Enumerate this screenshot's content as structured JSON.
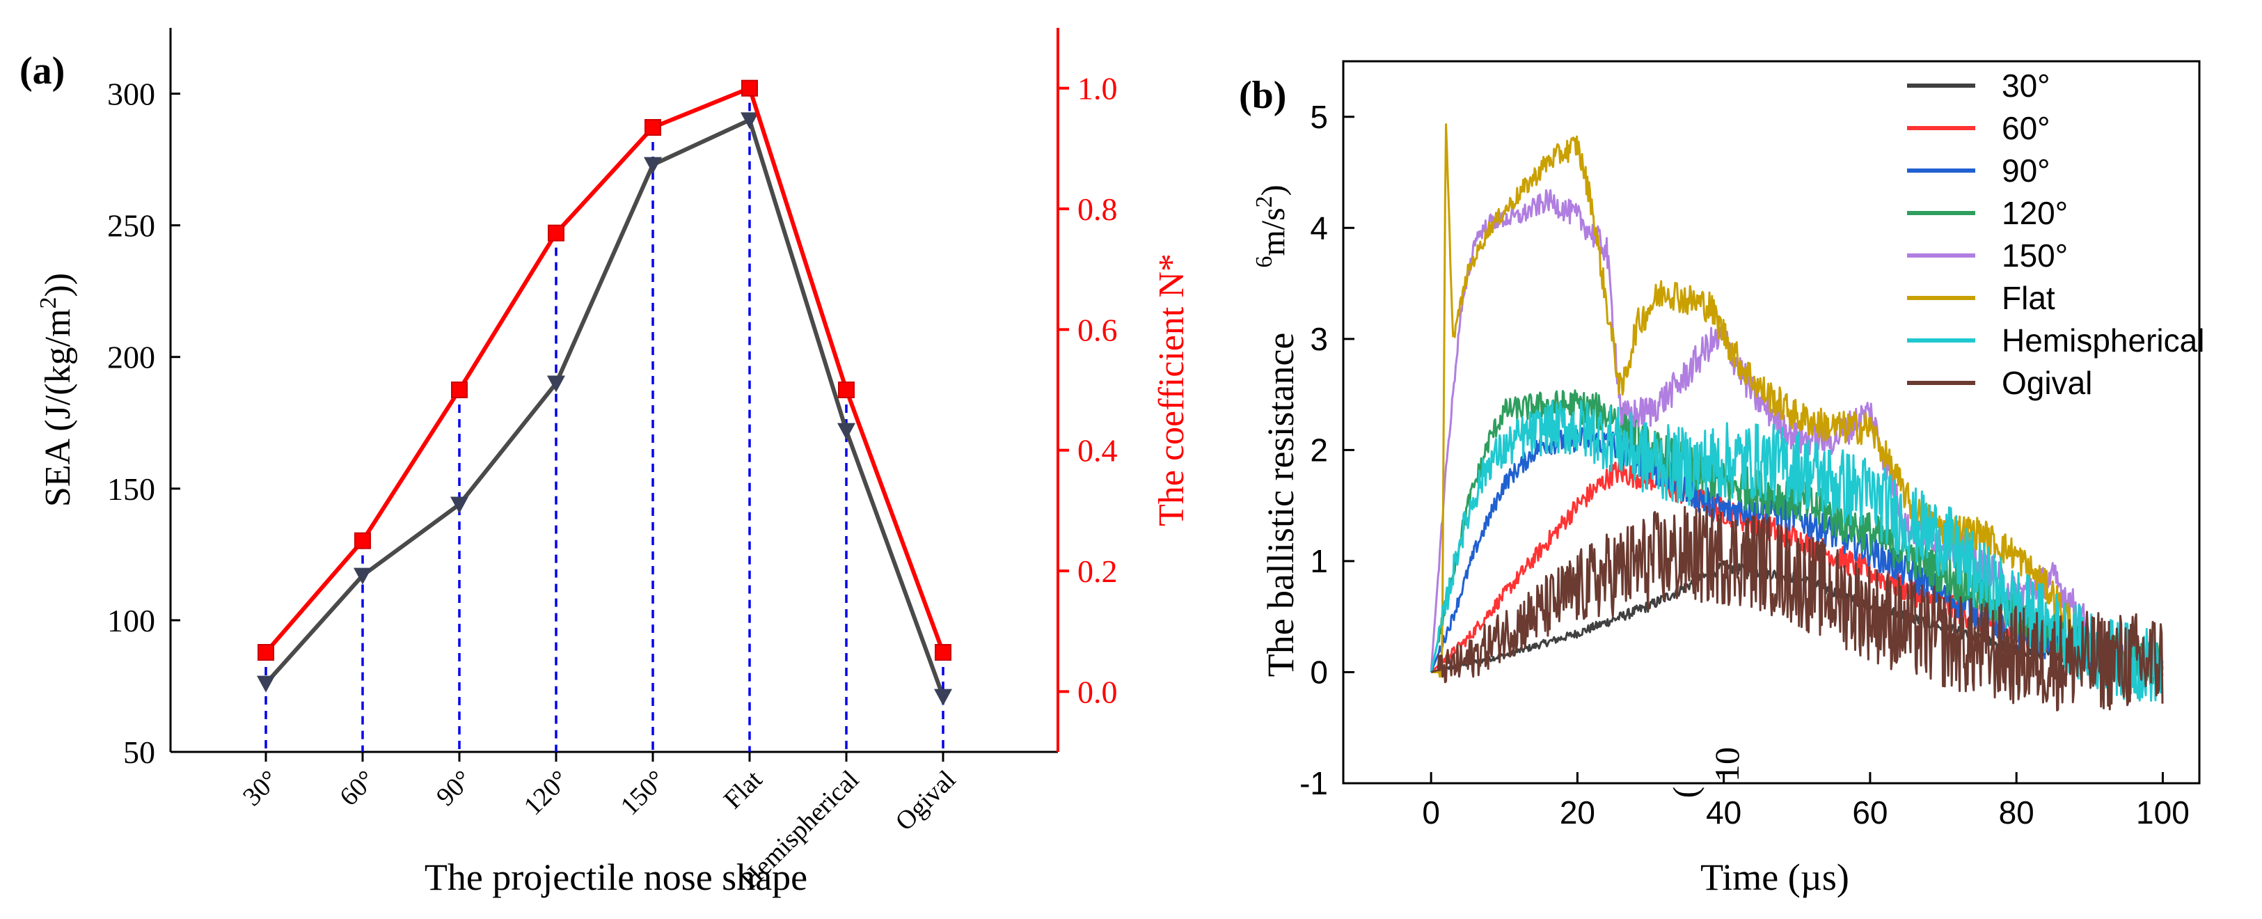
{
  "chart_data": [
    {
      "panel_label": "(a)",
      "type": "line",
      "xlabel": "The projectile nose shape",
      "ylabel_left": "SEA (J/(kg/m2))",
      "ylabel_left_main": "SEA (J/(kg/m",
      "ylabel_left_sup": "2",
      "ylabel_left_tail": "))",
      "ylabel_right": "The coefficient N*",
      "categories": [
        "30°",
        "60°",
        "90°",
        "120°",
        "150°",
        "Flat",
        "Hemispherical",
        "Ogival"
      ],
      "ylim_left": [
        50,
        325
      ],
      "ylim_right": [
        -0.1,
        1.1
      ],
      "yticks_left": [
        "50",
        "100",
        "150",
        "200",
        "250",
        "300"
      ],
      "yticks_right": [
        "0.0",
        "0.2",
        "0.4",
        "0.6",
        "0.8",
        "1.0"
      ],
      "series": [
        {
          "name": "SEA",
          "axis": "left",
          "color": "#4a4a4a",
          "marker": "triangle-down",
          "values": [
            76,
            117,
            144,
            190,
            273,
            290,
            172,
            71
          ]
        },
        {
          "name": "N*",
          "axis": "right",
          "color": "#ff0000",
          "marker": "square",
          "values": [
            0.065,
            0.25,
            0.5,
            0.76,
            0.935,
            1.0,
            0.5,
            0.065
          ]
        }
      ]
    },
    {
      "panel_label": "(b)",
      "type": "line",
      "xlabel": "Time (µs)",
      "ylabel": "The ballistic resistance (×10^6 m/s^2)",
      "ylabel_main": "The ballistic resistance",
      "ylabel_overlay": "(10",
      "ylabel_exp": "6",
      "ylabel_unit": "m/s",
      "ylabel_unit_sup": "2",
      "ylabel_unit_tail": ")",
      "xlim": [
        -12,
        105
      ],
      "ylim": [
        -1,
        5.5
      ],
      "xticks": [
        "0",
        "20",
        "40",
        "60",
        "80",
        "100"
      ],
      "yticks": [
        "-1",
        "0",
        "1",
        "2",
        "3",
        "4",
        "5"
      ],
      "legend_position": "top-right",
      "series": [
        {
          "name": "30°",
          "color": "#404040",
          "x": [
            0,
            10,
            20,
            30,
            40,
            50,
            60,
            70,
            80,
            90,
            100
          ],
          "y": [
            0,
            0.15,
            0.35,
            0.6,
            0.95,
            0.85,
            0.6,
            0.4,
            0.2,
            0.1,
            0.05
          ]
        },
        {
          "name": "60°",
          "color": "#ff3333",
          "x": [
            0,
            5,
            10,
            15,
            20,
            25,
            30,
            35,
            40,
            50,
            60,
            70,
            80,
            90,
            100
          ],
          "y": [
            0,
            0.3,
            0.7,
            1.1,
            1.5,
            1.8,
            1.75,
            1.6,
            1.45,
            1.2,
            0.9,
            0.6,
            0.35,
            0.15,
            0.05
          ]
        },
        {
          "name": "90°",
          "color": "#2060d0",
          "x": [
            0,
            3,
            6,
            10,
            15,
            20,
            25,
            30,
            40,
            45,
            50,
            60,
            70,
            80,
            90,
            100
          ],
          "y": [
            0,
            0.5,
            1.1,
            1.7,
            2.05,
            2.1,
            2.05,
            1.85,
            1.45,
            1.5,
            1.4,
            1.1,
            0.7,
            0.35,
            0.15,
            0.05
          ]
        },
        {
          "name": "120°",
          "color": "#2e9e5e",
          "x": [
            0,
            2,
            5,
            8,
            10,
            15,
            20,
            25,
            30,
            40,
            50,
            60,
            70,
            80,
            90,
            100
          ],
          "y": [
            0,
            0.6,
            1.5,
            2.1,
            2.35,
            2.4,
            2.4,
            2.3,
            2.0,
            1.7,
            1.55,
            1.25,
            0.9,
            0.5,
            0.2,
            0.05
          ]
        },
        {
          "name": "150°",
          "color": "#b07ee0",
          "x": [
            0,
            2,
            4,
            6,
            8,
            12,
            16,
            20,
            24,
            26,
            30,
            34,
            38,
            40,
            44,
            50,
            55,
            60,
            65,
            70,
            75,
            80,
            85,
            90
          ],
          "y": [
            0,
            1.8,
            3.2,
            3.9,
            4.05,
            4.1,
            4.25,
            4.1,
            3.8,
            2.3,
            2.35,
            2.6,
            2.95,
            3.0,
            2.5,
            2.1,
            2.1,
            2.35,
            1.3,
            1.2,
            1.0,
            0.7,
            0.85,
            0.4
          ]
        },
        {
          "name": "Flat",
          "color": "#c9a000",
          "x": [
            0,
            1.5,
            2,
            3,
            5,
            8,
            12,
            16,
            20,
            22,
            24,
            26,
            28,
            30,
            32,
            35,
            38,
            42,
            45,
            50,
            55,
            60,
            62,
            66,
            70,
            75,
            80,
            85,
            88
          ],
          "y": [
            0,
            0,
            5.0,
            3.0,
            3.6,
            4.0,
            4.3,
            4.6,
            4.75,
            4.2,
            3.3,
            2.5,
            3.1,
            3.3,
            3.45,
            3.35,
            3.3,
            2.8,
            2.55,
            2.3,
            2.2,
            2.2,
            1.95,
            1.45,
            1.3,
            1.25,
            1.05,
            0.7,
            0.4
          ]
        },
        {
          "name": "Hemispherical",
          "color": "#20c8d0",
          "x": [
            0,
            2,
            4,
            6,
            8,
            12,
            16,
            20,
            25,
            30,
            35,
            40,
            45,
            50,
            55,
            60,
            65,
            70,
            75,
            80,
            85,
            90,
            95,
            100
          ],
          "y": [
            0,
            0.6,
            1.2,
            1.6,
            1.9,
            2.1,
            2.2,
            2.2,
            2.1,
            1.9,
            1.85,
            1.9,
            1.9,
            1.85,
            1.7,
            1.6,
            1.35,
            1.2,
            0.85,
            0.6,
            0.4,
            0.2,
            0.1,
            0.05
          ]
        },
        {
          "name": "Ogival",
          "color": "#6b3a30",
          "x": [
            0,
            5,
            10,
            15,
            20,
            25,
            30,
            35,
            40,
            45,
            50,
            55,
            60,
            65,
            70,
            75,
            80,
            85,
            90,
            95,
            100
          ],
          "y": [
            0,
            0.1,
            0.35,
            0.55,
            0.75,
            0.9,
            1.0,
            1.05,
            1.05,
            1.0,
            0.85,
            0.7,
            0.55,
            0.4,
            0.3,
            0.2,
            0.15,
            0.1,
            0.1,
            0.1,
            0.1
          ]
        }
      ],
      "overlay_text_1": "(",
      "overlay_text_2": "10"
    }
  ]
}
